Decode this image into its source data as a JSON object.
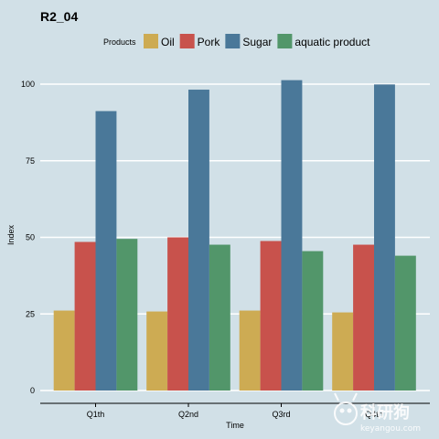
{
  "chart_data": {
    "type": "bar",
    "title": "R2_04",
    "xlabel": "Time",
    "ylabel": "Index",
    "legend_title": "Products",
    "legend_position": "top",
    "categories": [
      "Q1th",
      "Q2nd",
      "Q3rd",
      "Q4th"
    ],
    "series": [
      {
        "name": "Oil",
        "color": "#cdab53",
        "values": [
          26.1,
          25.8,
          26.1,
          25.5
        ]
      },
      {
        "name": "Pork",
        "color": "#c8524c",
        "values": [
          48.5,
          50.0,
          48.8,
          47.6
        ]
      },
      {
        "name": "Sugar",
        "color": "#4a7899",
        "values": [
          91.2,
          98.2,
          101.3,
          99.9
        ]
      },
      {
        "name": "aquatic product",
        "color": "#52966a",
        "values": [
          49.5,
          47.6,
          45.5,
          44.0
        ]
      }
    ],
    "ylim": [
      0,
      105
    ],
    "yticks": [
      0,
      25,
      50,
      75,
      100
    ],
    "grid": "horizontal"
  },
  "watermark": {
    "text": "科研狗",
    "url": "keyangou.com"
  }
}
